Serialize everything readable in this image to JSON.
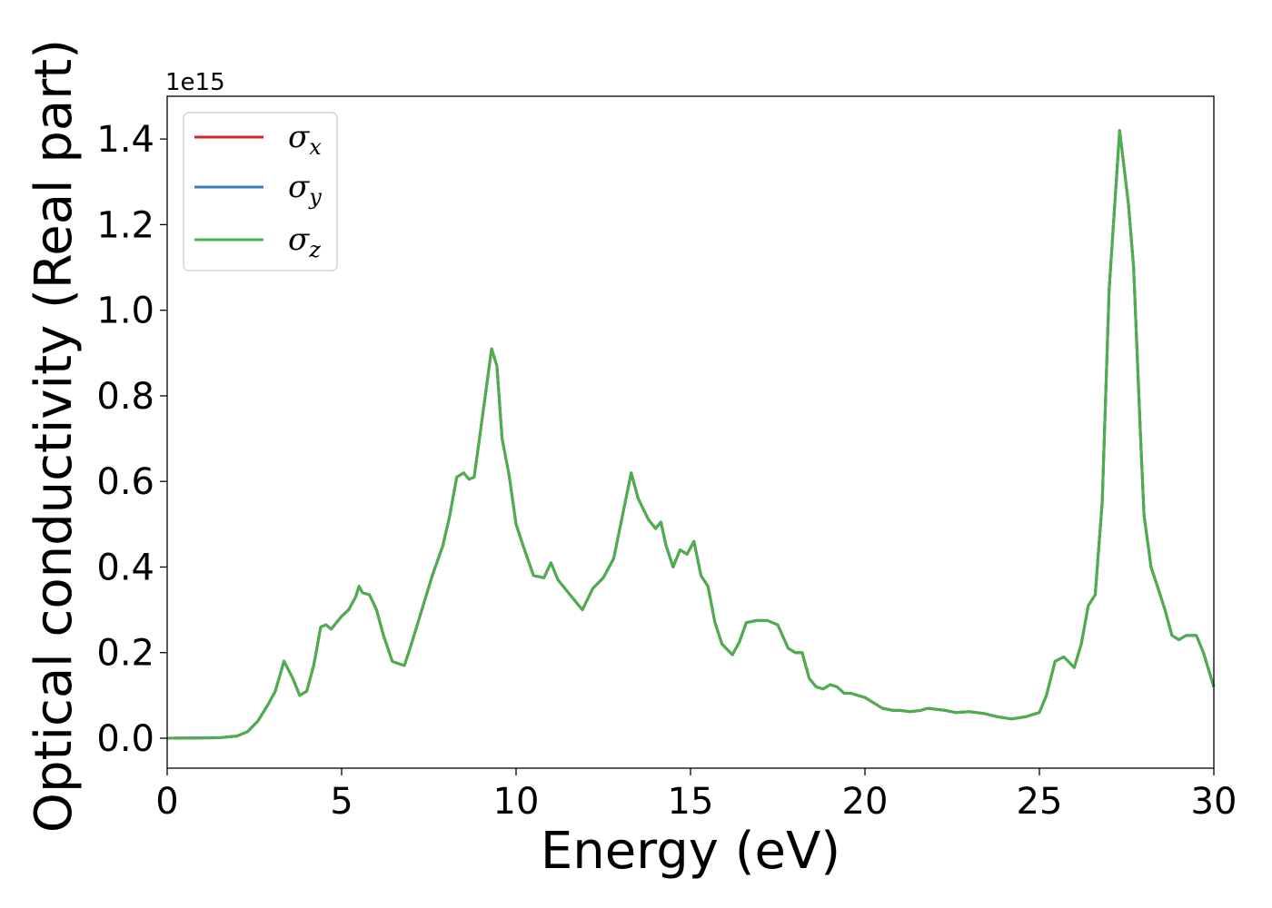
{
  "chart_data": {
    "type": "line",
    "title": "",
    "xlabel": "Energy (eV)",
    "ylabel": "Optical conductivity (Real part)",
    "offset_text": "1e15",
    "xlim": [
      0,
      30
    ],
    "ylim": [
      -0.07,
      1.5
    ],
    "y_scale_factor": 1000000000000000.0,
    "xticks": [
      0,
      5,
      10,
      15,
      20,
      25,
      30
    ],
    "xtick_labels": [
      "0",
      "5",
      "10",
      "15",
      "20",
      "25",
      "30"
    ],
    "yticks": [
      0.0,
      0.2,
      0.4,
      0.6,
      0.8,
      1.0,
      1.2,
      1.4
    ],
    "ytick_labels": [
      "0.0",
      "0.2",
      "0.4",
      "0.6",
      "0.8",
      "1.0",
      "1.2",
      "1.4"
    ],
    "grid": false,
    "legend": {
      "placement": "top-left"
    },
    "series": [
      {
        "name": "σx",
        "symbol": "σ",
        "subscript": "x",
        "color": "#d62728"
      },
      {
        "name": "σy",
        "symbol": "σ",
        "subscript": "y",
        "color": "#377eb8"
      },
      {
        "name": "σz",
        "symbol": "σ",
        "subscript": "z",
        "color": "#4daf4a"
      }
    ],
    "shared_curve": {
      "x": [
        0,
        1.5,
        2.0,
        2.3,
        2.6,
        2.9,
        3.1,
        3.35,
        3.6,
        3.8,
        4.0,
        4.2,
        4.4,
        4.55,
        4.7,
        5.0,
        5.2,
        5.4,
        5.5,
        5.6,
        5.8,
        6.0,
        6.2,
        6.45,
        6.6,
        6.8,
        7.0,
        7.3,
        7.6,
        7.9,
        8.1,
        8.3,
        8.5,
        8.65,
        8.8,
        9.0,
        9.3,
        9.45,
        9.6,
        9.8,
        10.0,
        10.2,
        10.5,
        10.8,
        11.0,
        11.2,
        11.5,
        11.9,
        12.2,
        12.5,
        12.8,
        13.1,
        13.3,
        13.5,
        13.8,
        14.0,
        14.15,
        14.3,
        14.5,
        14.7,
        14.9,
        15.1,
        15.3,
        15.5,
        15.7,
        15.9,
        16.2,
        16.4,
        16.6,
        16.9,
        17.2,
        17.5,
        17.8,
        18.0,
        18.2,
        18.4,
        18.6,
        18.8,
        19.0,
        19.2,
        19.4,
        19.6,
        19.8,
        20.0,
        20.2,
        20.5,
        20.8,
        21.0,
        21.3,
        21.6,
        21.8,
        22.0,
        22.3,
        22.6,
        23.0,
        23.4,
        23.8,
        24.2,
        24.6,
        25.0,
        25.2,
        25.45,
        25.7,
        26.0,
        26.2,
        26.4,
        26.6,
        26.8,
        27.0,
        27.3,
        27.55,
        27.7,
        27.9,
        28.0,
        28.2,
        28.4,
        28.6,
        28.8,
        29.0,
        29.2,
        29.5,
        29.7,
        30.0
      ],
      "y": [
        0.0,
        0.001,
        0.005,
        0.015,
        0.04,
        0.08,
        0.11,
        0.18,
        0.14,
        0.1,
        0.11,
        0.17,
        0.26,
        0.265,
        0.255,
        0.285,
        0.3,
        0.33,
        0.355,
        0.34,
        0.335,
        0.3,
        0.24,
        0.18,
        0.175,
        0.17,
        0.22,
        0.3,
        0.38,
        0.45,
        0.52,
        0.61,
        0.62,
        0.605,
        0.61,
        0.73,
        0.91,
        0.87,
        0.7,
        0.615,
        0.5,
        0.45,
        0.38,
        0.375,
        0.41,
        0.37,
        0.34,
        0.3,
        0.35,
        0.375,
        0.42,
        0.54,
        0.62,
        0.56,
        0.51,
        0.49,
        0.505,
        0.45,
        0.4,
        0.44,
        0.43,
        0.46,
        0.38,
        0.355,
        0.27,
        0.22,
        0.195,
        0.225,
        0.27,
        0.275,
        0.275,
        0.265,
        0.21,
        0.2,
        0.2,
        0.14,
        0.12,
        0.115,
        0.125,
        0.12,
        0.105,
        0.105,
        0.1,
        0.095,
        0.085,
        0.07,
        0.065,
        0.065,
        0.062,
        0.065,
        0.07,
        0.068,
        0.065,
        0.06,
        0.062,
        0.058,
        0.05,
        0.045,
        0.05,
        0.06,
        0.1,
        0.18,
        0.19,
        0.165,
        0.22,
        0.31,
        0.335,
        0.55,
        1.05,
        1.42,
        1.25,
        1.1,
        0.7,
        0.52,
        0.4,
        0.35,
        0.3,
        0.24,
        0.23,
        0.24,
        0.24,
        0.2,
        0.12
      ]
    }
  }
}
